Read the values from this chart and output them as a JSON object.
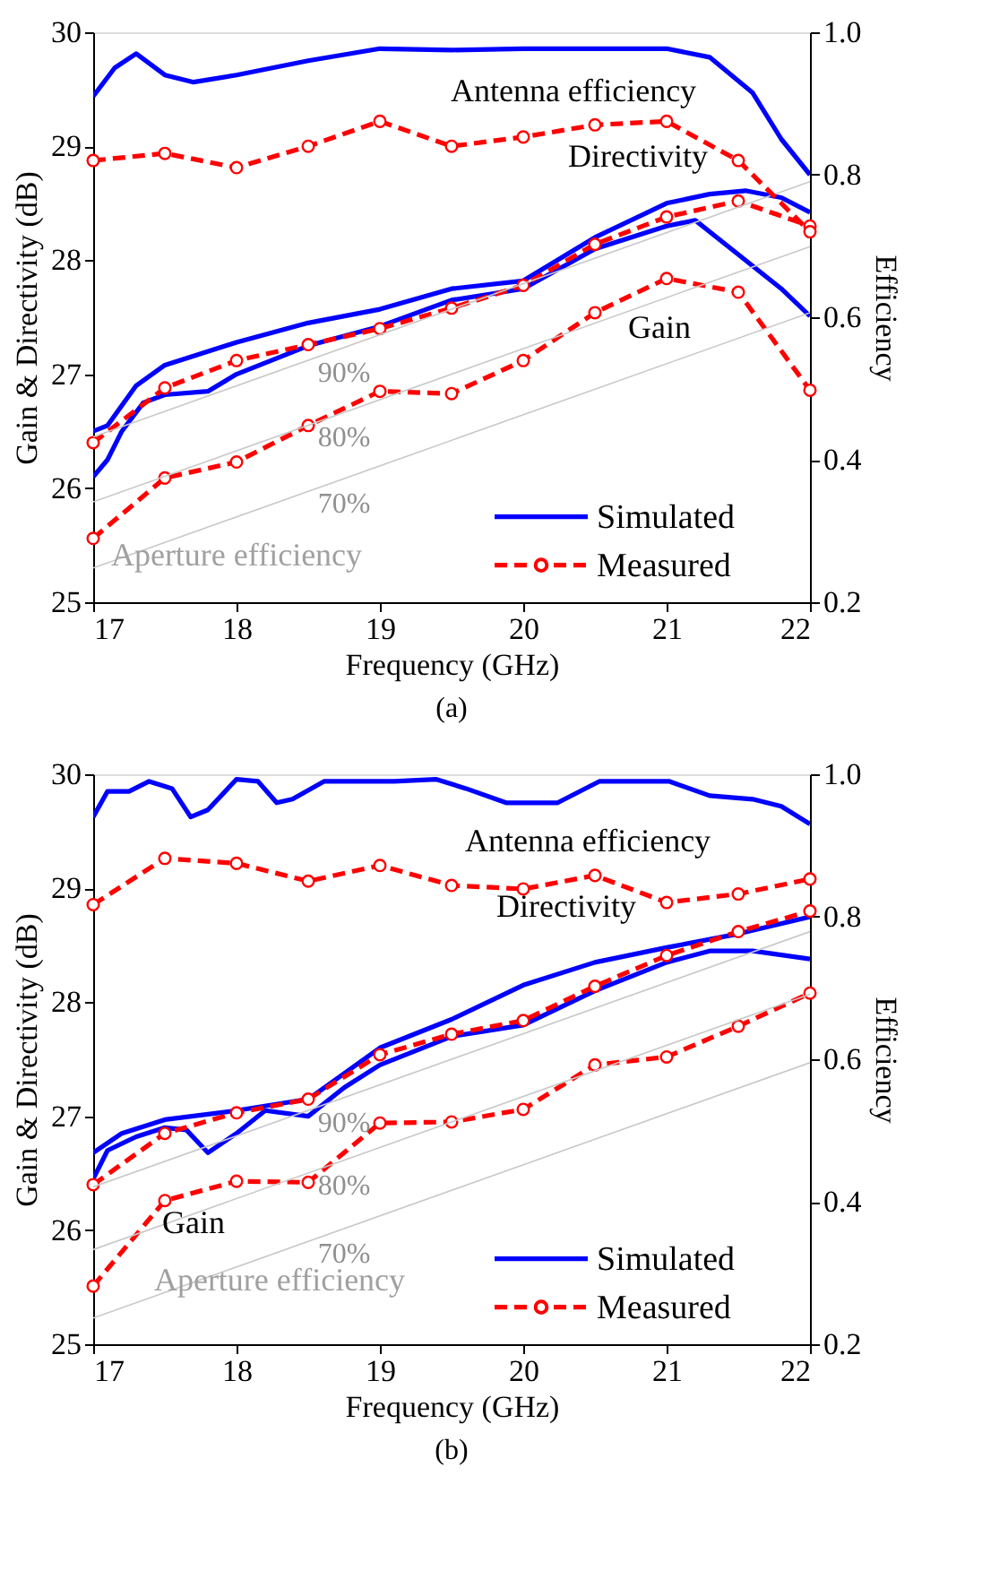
{
  "chart_data": [
    {
      "type": "line",
      "title": "(a)",
      "xlabel": "Frequency (GHz)",
      "ylabel": "Gain & Directivity (dB)",
      "y2label": "Efficiency",
      "x": [
        17,
        17.5,
        18,
        18.5,
        19,
        19.5,
        20,
        20.5,
        21,
        21.5,
        22
      ],
      "xlim": [
        17,
        22
      ],
      "xticks": [
        17,
        18,
        19,
        20,
        21,
        22
      ],
      "ylim": [
        25,
        30
      ],
      "yticks": [
        25,
        26,
        27,
        28,
        29,
        30
      ],
      "y2lim": [
        0.2,
        1.0
      ],
      "y2ticks": [
        0.2,
        0.4,
        0.6,
        0.8,
        {
          "value": 1.0,
          "label": "1.0"
        }
      ],
      "legend": "bottom right",
      "annotations": [
        "Antenna efficiency",
        "Directivity",
        "Gain",
        "Aperture efficiency"
      ],
      "series": [
        {
          "axis": "y2",
          "color": "#0000ff",
          "line_style": "solid",
          "marker": "none",
          "x": [
            17,
            17.15,
            17.3,
            17.5,
            17.7,
            18,
            18.5,
            19,
            19.5,
            20,
            20.5,
            21,
            21.3,
            21.6,
            21.8,
            22
          ],
          "values": [
            0.91,
            0.95,
            0.97,
            0.94,
            0.93,
            0.94,
            0.96,
            0.977,
            0.975,
            0.977,
            0.977,
            0.977,
            0.965,
            0.915,
            0.85,
            0.8
          ]
        },
        {
          "color": "#0000ff",
          "line_style": "solid",
          "marker": "none",
          "x": [
            17,
            17.1,
            17.3,
            17.5,
            18,
            18.5,
            19,
            19.5,
            20,
            20.5,
            21,
            21.3,
            21.55,
            21.8,
            22
          ],
          "values": [
            26.5,
            26.55,
            26.9,
            27.08,
            27.28,
            27.45,
            27.57,
            27.75,
            27.82,
            28.2,
            28.5,
            28.58,
            28.61,
            28.55,
            28.42
          ]
        },
        {
          "name": "Simulated",
          "color": "#0000ff",
          "line_style": "solid",
          "marker": "none",
          "x": [
            17,
            17.1,
            17.2,
            17.35,
            17.5,
            17.8,
            18,
            18.5,
            19,
            19.5,
            20,
            20.5,
            21,
            21.2,
            21.5,
            21.8,
            22
          ],
          "values": [
            26.1,
            26.25,
            26.5,
            26.75,
            26.82,
            26.85,
            27.0,
            27.25,
            27.42,
            27.65,
            27.75,
            28.1,
            28.3,
            28.35,
            28.05,
            27.75,
            27.51
          ]
        },
        {
          "axis": "y2",
          "color": "#ff0000",
          "line_style": "dashed",
          "marker": "circle",
          "values": [
            0.82,
            0.83,
            0.81,
            0.84,
            0.875,
            0.84,
            0.853,
            0.87,
            0.875,
            0.82,
            0.72
          ]
        },
        {
          "color": "#ff0000",
          "line_style": "dashed",
          "marker": "circle",
          "values": [
            26.4,
            26.88,
            27.12,
            27.26,
            27.4,
            27.58,
            27.78,
            28.14,
            28.38,
            28.52,
            28.3
          ]
        },
        {
          "name": "Measured",
          "color": "#ff0000",
          "line_style": "dashed",
          "marker": "circle",
          "values": [
            25.56,
            26.09,
            26.23,
            26.55,
            26.85,
            26.83,
            27.12,
            27.54,
            27.84,
            27.72,
            26.86
          ]
        },
        {
          "name": "90%",
          "color": "#c8c8c8",
          "line_style": "solid",
          "marker": "none",
          "x": [
            17,
            22
          ],
          "values": [
            26.45,
            28.69
          ]
        },
        {
          "name": "80%",
          "color": "#c8c8c8",
          "line_style": "solid",
          "marker": "none",
          "x": [
            17,
            22
          ],
          "values": [
            25.88,
            28.12
          ]
        },
        {
          "name": "70%",
          "color": "#c8c8c8",
          "line_style": "solid",
          "marker": "none",
          "x": [
            17,
            22
          ],
          "values": [
            25.3,
            27.54
          ]
        }
      ]
    },
    {
      "type": "line",
      "title": "(b)",
      "xlabel": "Frequency (GHz)",
      "ylabel": "Gain & Directivity (dB)",
      "y2label": "Efficiency",
      "x": [
        17,
        17.5,
        18,
        18.5,
        19,
        19.5,
        20,
        20.5,
        21,
        21.5,
        22
      ],
      "xlim": [
        17,
        22
      ],
      "xticks": [
        17,
        18,
        19,
        20,
        21,
        22
      ],
      "ylim": [
        25,
        30
      ],
      "yticks": [
        25,
        26,
        27,
        28,
        29,
        30
      ],
      "y2lim": [
        0.2,
        1.0
      ],
      "y2ticks": [
        0.2,
        0.4,
        0.6,
        0.8,
        {
          "value": 1.0,
          "label": "1.0"
        }
      ],
      "legend": "bottom right",
      "annotations": [
        "Antenna efficiency",
        "Directivity",
        "Gain",
        "Aperture efficiency"
      ],
      "series": [
        {
          "axis": "y2",
          "color": "#0000ff",
          "line_style": "solid",
          "marker": "none",
          "x": [
            17,
            17.1,
            17.25,
            17.39,
            17.55,
            17.68,
            17.8,
            18,
            18.15,
            18.28,
            18.39,
            18.61,
            19.1,
            19.39,
            19.6,
            19.88,
            20.24,
            20.53,
            21.02,
            21.3,
            21.6,
            21.8,
            22
          ],
          "values": [
            0.94,
            0.976,
            0.976,
            0.99,
            0.98,
            0.94,
            0.95,
            0.993,
            0.99,
            0.96,
            0.965,
            0.99,
            0.99,
            0.993,
            0.98,
            0.96,
            0.96,
            0.99,
            0.99,
            0.97,
            0.965,
            0.955,
            0.93
          ]
        },
        {
          "color": "#0000ff",
          "line_style": "solid",
          "marker": "none",
          "x": [
            17,
            17.2,
            17.5,
            18,
            18.5,
            19,
            19.5,
            20,
            20.5,
            21,
            21.5,
            22
          ],
          "values": [
            26.68,
            26.85,
            26.97,
            27.05,
            27.15,
            27.6,
            27.85,
            28.15,
            28.35,
            28.48,
            28.6,
            28.75
          ]
        },
        {
          "name": "Simulated",
          "color": "#0000ff",
          "line_style": "solid",
          "marker": "none",
          "x": [
            17,
            17.1,
            17.3,
            17.5,
            17.65,
            17.8,
            18,
            18.2,
            18.5,
            18.75,
            19,
            19.5,
            20,
            20.5,
            21,
            21.3,
            21.6,
            22
          ],
          "values": [
            26.45,
            26.7,
            26.82,
            26.9,
            26.88,
            26.68,
            26.85,
            27.05,
            27.0,
            27.25,
            27.45,
            27.7,
            27.8,
            28.1,
            28.35,
            28.45,
            28.45,
            28.38
          ]
        },
        {
          "axis": "y2",
          "color": "#ff0000",
          "line_style": "dashed",
          "marker": "circle",
          "values": [
            0.817,
            0.882,
            0.875,
            0.85,
            0.872,
            0.844,
            0.839,
            0.858,
            0.82,
            0.832,
            0.853
          ]
        },
        {
          "color": "#ff0000",
          "line_style": "dashed",
          "marker": "circle",
          "values": [
            26.4,
            26.85,
            27.03,
            27.15,
            27.54,
            27.72,
            27.84,
            28.14,
            28.41,
            28.62,
            28.8
          ]
        },
        {
          "name": "Measured",
          "color": "#ff0000",
          "line_style": "dashed",
          "marker": "circle",
          "values": [
            25.51,
            26.26,
            26.43,
            26.42,
            26.94,
            26.95,
            27.06,
            27.45,
            27.52,
            27.79,
            28.08
          ]
        },
        {
          "name": "90%",
          "color": "#c8c8c8",
          "line_style": "solid",
          "marker": "none",
          "x": [
            17,
            22
          ],
          "values": [
            26.38,
            28.62
          ]
        },
        {
          "name": "80%",
          "color": "#c8c8c8",
          "line_style": "solid",
          "marker": "none",
          "x": [
            17,
            22
          ],
          "values": [
            25.83,
            28.07
          ]
        },
        {
          "name": "70%",
          "color": "#c8c8c8",
          "line_style": "solid",
          "marker": "none",
          "x": [
            17,
            22
          ],
          "values": [
            25.23,
            27.47
          ]
        }
      ]
    }
  ]
}
